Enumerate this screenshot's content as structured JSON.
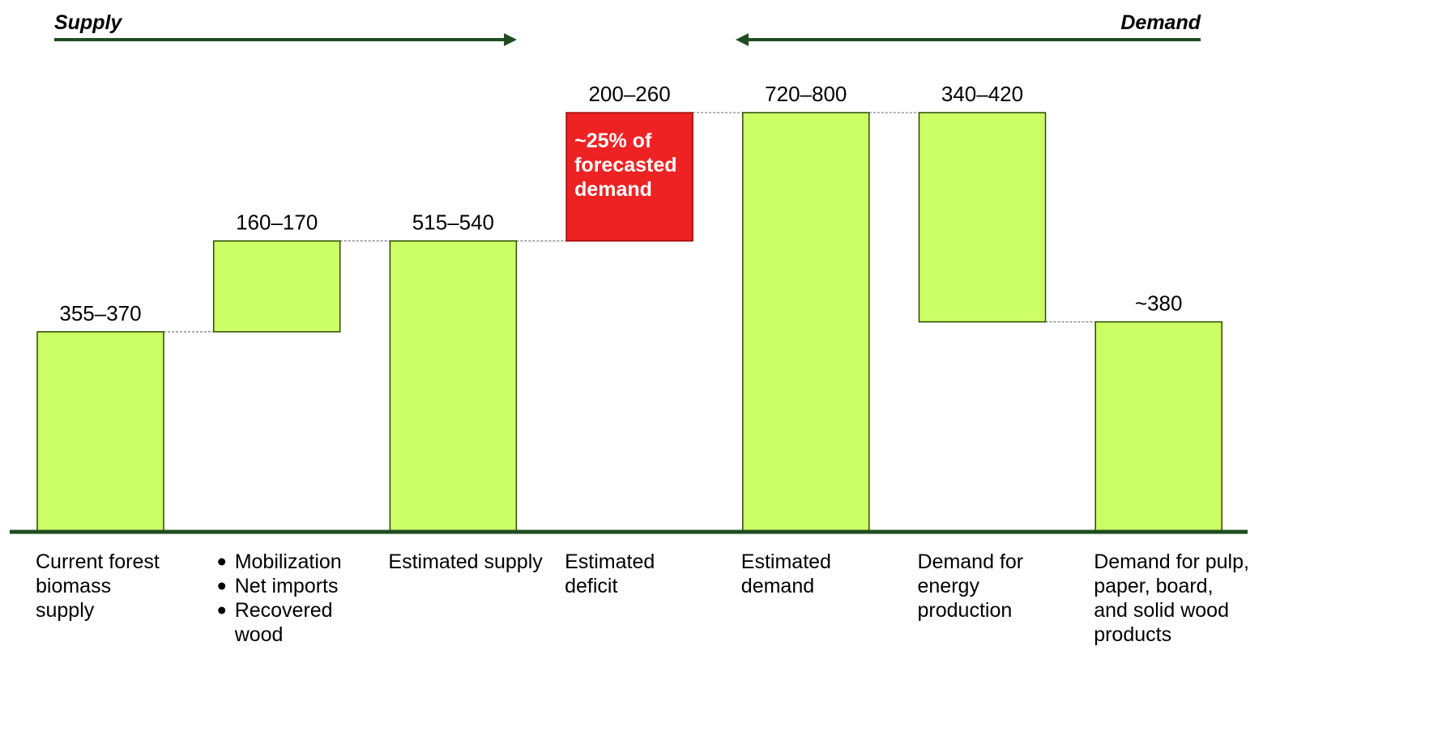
{
  "chart_data": {
    "type": "bar",
    "subtype": "waterfall",
    "headings": {
      "left": "Supply",
      "right": "Demand"
    },
    "colors": {
      "bar": "#ccff66",
      "bar_border": "#2b4a00",
      "deficit": "#ee2222",
      "axis": "#1f4d1f",
      "arrow": "#1f4d1f",
      "connector": "#7a7a7a"
    },
    "ylim": [
      0,
      800
    ],
    "bars": [
      {
        "category": [
          "Current forest",
          "biomass",
          "supply"
        ],
        "bullets": false,
        "base": 0,
        "top": 362,
        "value_label": "355–370",
        "color": "bar"
      },
      {
        "category": [
          "Mobilization",
          "Net imports",
          "Recovered",
          "wood"
        ],
        "bullets": true,
        "bullet_lines": [
          true,
          true,
          true,
          false
        ],
        "base": 362,
        "top": 527,
        "value_label": "160–170",
        "color": "bar"
      },
      {
        "category": [
          "Estimated supply"
        ],
        "bullets": false,
        "base": 0,
        "top": 527,
        "value_label": "515–540",
        "color": "bar"
      },
      {
        "category": [
          "Estimated",
          "deficit"
        ],
        "bullets": false,
        "base": 527,
        "top": 760,
        "value_label": "200–260",
        "color": "deficit",
        "note": [
          "~25% of",
          "forecasted",
          "demand"
        ]
      },
      {
        "category": [
          "Estimated",
          "demand"
        ],
        "bullets": false,
        "base": 0,
        "top": 760,
        "value_label": "720–800",
        "color": "bar"
      },
      {
        "category": [
          "Demand for",
          "energy",
          "production"
        ],
        "bullets": false,
        "base": 380,
        "top": 760,
        "value_label": "340–420",
        "color": "bar"
      },
      {
        "category": [
          "Demand for pulp,",
          "paper, board,",
          "and solid wood",
          "products"
        ],
        "bullets": false,
        "base": 0,
        "top": 380,
        "value_label": "~380",
        "color": "bar"
      }
    ]
  }
}
